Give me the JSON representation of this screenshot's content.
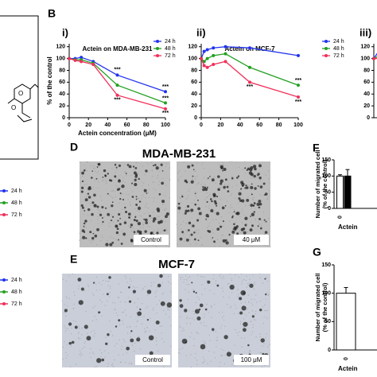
{
  "panel_labels": [
    "B",
    "D",
    "E",
    "F",
    "G"
  ],
  "left_legends": [
    {
      "names": [
        "24 h",
        "48 h",
        "72 h"
      ],
      "colors": [
        "#2233ee",
        "#22a022",
        "#f0305a"
      ]
    },
    {
      "names": [
        "24 h",
        "48 h",
        "72 h"
      ],
      "colors": [
        "#2233ee",
        "#22a022",
        "#f0305a"
      ]
    }
  ],
  "micrographs": [
    {
      "title": "MDA-MB-231",
      "images": [
        "Control",
        "40 μM"
      ]
    },
    {
      "title": "MCF-7",
      "images": [
        "Control",
        "100 μM"
      ]
    }
  ],
  "chart_data": [
    {
      "type": "line",
      "panel": "i)",
      "title": "Actein on MDA-MB-231",
      "x_label": "Actein concentration (μM)",
      "y_label": "% of the control",
      "x": [
        0,
        6.25,
        12.5,
        25,
        50,
        100
      ],
      "series": [
        {
          "name": "24 h",
          "color": "#2233ee",
          "values": [
            100,
            100,
            102,
            95,
            72,
            44
          ]
        },
        {
          "name": "48 h",
          "color": "#22a022",
          "values": [
            100,
            98,
            98,
            92,
            55,
            25
          ]
        },
        {
          "name": "72 h",
          "color": "#f0305a",
          "values": [
            100,
            97,
            95,
            90,
            38,
            15
          ]
        }
      ],
      "xlim": [
        0,
        100
      ],
      "xticks": [
        0,
        20,
        40,
        60,
        80,
        100
      ],
      "ylim": [
        0,
        125
      ],
      "yticks": [
        0,
        20,
        40,
        60,
        80,
        100,
        120
      ],
      "legend": "upper right",
      "annotations": [
        {
          "text": "***",
          "x": 50,
          "y": 81,
          "color": "#2233ee"
        },
        {
          "text": "***",
          "x": 100,
          "y": 52,
          "color": "#2233ee"
        },
        {
          "text": "***",
          "x": 100,
          "y": 33,
          "color": "#22a022"
        },
        {
          "text": "***",
          "x": 50,
          "y": 30,
          "color": "#f0305a"
        },
        {
          "text": "***",
          "x": 100,
          "y": 8,
          "color": "#f0305a"
        }
      ]
    },
    {
      "type": "line",
      "panel": "ii)",
      "title": "Actein on MCF-7",
      "x": [
        0,
        3,
        6.25,
        12.5,
        25,
        50,
        100
      ],
      "series": [
        {
          "name": "24 h",
          "color": "#2233ee",
          "values": [
            100,
            112,
            115,
            118,
            120,
            118,
            105
          ]
        },
        {
          "name": "48 h",
          "color": "#22a022",
          "values": [
            100,
            95,
            100,
            105,
            108,
            85,
            55
          ]
        },
        {
          "name": "72 h",
          "color": "#f0305a",
          "values": [
            100,
            88,
            85,
            90,
            95,
            60,
            35
          ]
        }
      ],
      "xlim": [
        0,
        100
      ],
      "xticks": [
        0,
        20,
        40,
        60,
        80,
        100
      ],
      "ylim": [
        0,
        125
      ],
      "yticks": [
        0,
        20,
        40,
        60,
        80,
        100,
        120
      ],
      "legend": "outside right",
      "annotations": [
        {
          "text": "***",
          "x": 100,
          "y": 63,
          "color": "#22a022"
        },
        {
          "text": "***",
          "x": 50,
          "y": 52,
          "color": "#f0305a"
        },
        {
          "text": "***",
          "x": 100,
          "y": 27,
          "color": "#f0305a"
        }
      ]
    },
    {
      "type": "line",
      "panel": "iii)",
      "x": [
        0,
        6.25
      ],
      "series": [
        {
          "color": "#2233ee",
          "values": [
            100,
            115
          ]
        },
        {
          "color": "#22a022",
          "values": [
            100,
            105
          ]
        },
        {
          "color": "#f0305a",
          "values": [
            100,
            100
          ]
        }
      ],
      "xlim": [
        0,
        100
      ],
      "ylim": [
        0,
        125
      ],
      "yticks": [
        0,
        20,
        40,
        60,
        80,
        100,
        120
      ]
    },
    {
      "type": "bar",
      "y_label": [
        "Number of migrated cell",
        "(% of the control)"
      ],
      "x_label": "Actein",
      "categories": [
        "0",
        null
      ],
      "values": [
        100,
        100
      ],
      "errors": [
        4,
        20
      ],
      "colors": [
        "#ffffff",
        "#000000"
      ],
      "ylim": [
        0,
        150
      ],
      "yticks": [
        0,
        50,
        100,
        150
      ]
    },
    {
      "type": "bar",
      "y_label": [
        "Number of migrated cell",
        "(% of the control)"
      ],
      "x_label": "Actein",
      "categories": [
        "0"
      ],
      "values": [
        100
      ],
      "errors": [
        10
      ],
      "colors": [
        "#ffffff"
      ],
      "ylim": [
        0,
        150
      ],
      "yticks": [
        0,
        50,
        100,
        150
      ]
    }
  ]
}
